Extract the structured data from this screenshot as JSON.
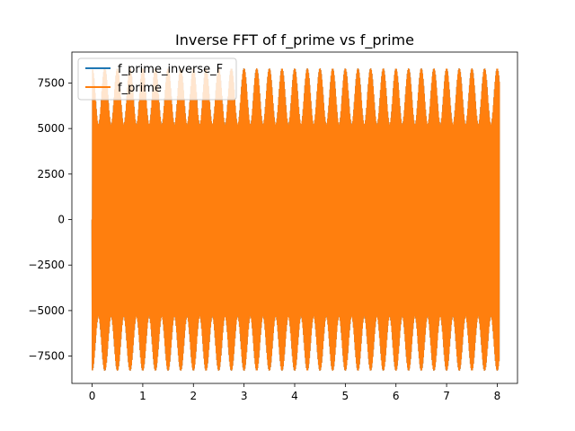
{
  "chart_data": {
    "type": "line",
    "title": "Inverse FFT of f_prime vs f_prime",
    "xlabel": "",
    "ylabel": "",
    "xlim": [
      -0.4,
      8.4
    ],
    "ylim": [
      -9000,
      9200
    ],
    "xticks": [
      0,
      1,
      2,
      3,
      4,
      5,
      6,
      7,
      8
    ],
    "xtick_labels": [
      "0",
      "1",
      "2",
      "3",
      "4",
      "5",
      "6",
      "7",
      "8"
    ],
    "yticks": [
      -7500,
      -5000,
      -2500,
      0,
      2500,
      5000,
      7500
    ],
    "ytick_labels": [
      "−7500",
      "−5000",
      "−2500",
      "0",
      "2500",
      "5000",
      "7500"
    ],
    "x_range": [
      0,
      8.04
    ],
    "envelope": {
      "beat_period": 0.25,
      "high_peak": 8300,
      "low_peak": 5200,
      "high_trough": -8300,
      "low_trough": -5300
    },
    "series": [
      {
        "name": "f_prime_inverse_F",
        "color": "#1f77b4"
      },
      {
        "name": "f_prime",
        "color": "#ff7f0e"
      }
    ],
    "legend": {
      "placement": "top-left"
    },
    "grid": false
  }
}
